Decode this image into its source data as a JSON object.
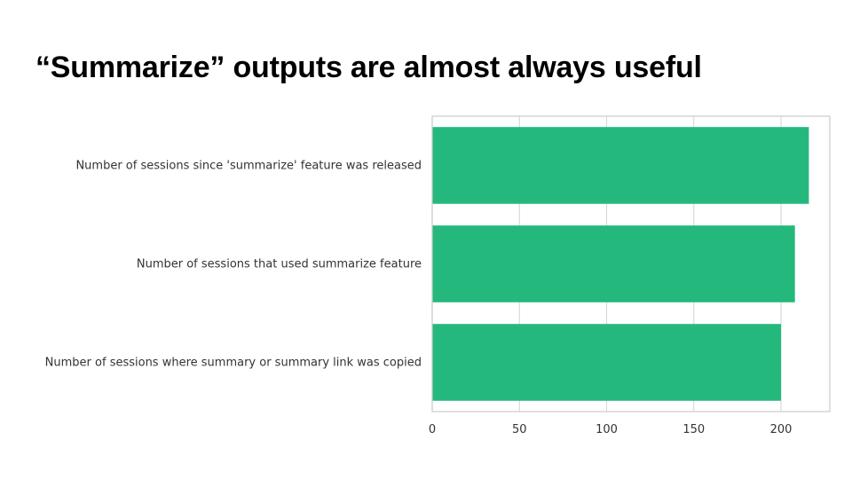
{
  "slide": {
    "title": "“Summarize” outputs are almost always useful"
  },
  "chart_data": {
    "type": "bar",
    "orientation": "horizontal",
    "categories": [
      "Number of sessions since 'summarize' feature was released",
      "Number of sessions that used summarize feature",
      "Number of sessions where summary or summary link was copied"
    ],
    "values": [
      216,
      208,
      200
    ],
    "xlim": [
      0,
      228
    ],
    "xticks": [
      0,
      50,
      100,
      150,
      200
    ],
    "xtick_labels": [
      "0",
      "50",
      "100",
      "150",
      "200"
    ],
    "grid": true,
    "bar_color": "#25b87d",
    "grid_color": "#d9d9d9",
    "frame_color": "#cccccc"
  }
}
